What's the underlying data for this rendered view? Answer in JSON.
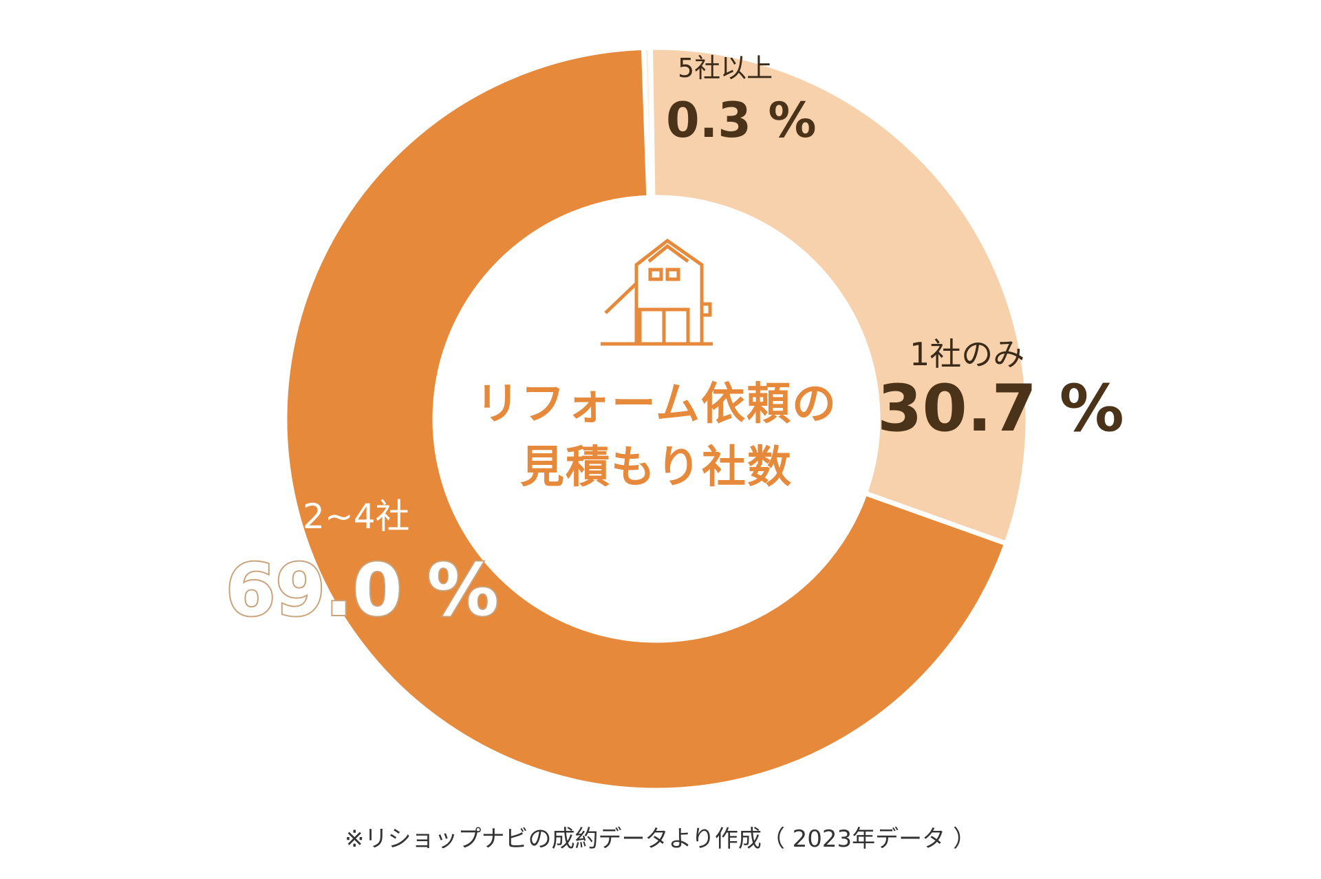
{
  "chart_data": {
    "type": "pie",
    "donut": true,
    "title": "リフォーム依頼の見積もり社数",
    "title_lines": [
      "リフォーム依頼の",
      "見積もり社数"
    ],
    "categories": [
      "5社以上",
      "1社のみ",
      "2~4社"
    ],
    "values": [
      0.3,
      30.7,
      69.0
    ],
    "value_labels": [
      "0.3 %",
      "30.7 %",
      "69.0 %"
    ],
    "colors": [
      "#fbeee0",
      "#f7d1ab",
      "#e6893a"
    ],
    "center_icon": "house-icon",
    "note": "※リショップナビの成約データより作成（ 2023年データ ）"
  },
  "colors": {
    "title": "#e6893a",
    "label": "#4a3319",
    "outline": "#c9a27a"
  }
}
